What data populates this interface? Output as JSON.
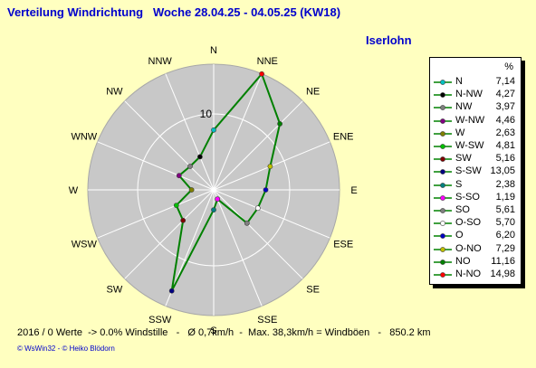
{
  "header": {
    "title": "Verteilung Windrichtung   Woche 28.04.25 - 04.05.25 (KW18)",
    "location": "Iserlohn"
  },
  "footer": {
    "stats": "2016 / 0 Werte  -> 0.0% Windstille   -   Ø 0,7km/h  -  Max. 38,3km/h = Windböen   -   850.2 km",
    "credit": "© WsWin32   -   © Heiko Blödorn"
  },
  "legend": {
    "header": "%",
    "items": [
      {
        "name": "N",
        "value": "7,14",
        "color": "#00c0c0"
      },
      {
        "name": "N-NW",
        "value": "4,27",
        "color": "#000000"
      },
      {
        "name": "NW",
        "value": "3,97",
        "color": "#808080"
      },
      {
        "name": "W-NW",
        "value": "4,46",
        "color": "#800080"
      },
      {
        "name": "W",
        "value": "2,63",
        "color": "#808000"
      },
      {
        "name": "W-SW",
        "value": "4,81",
        "color": "#00c000"
      },
      {
        "name": "SW",
        "value": "5,16",
        "color": "#800000"
      },
      {
        "name": "S-SW",
        "value": "13,05",
        "color": "#000080"
      },
      {
        "name": "S",
        "value": "2,38",
        "color": "#008080"
      },
      {
        "name": "S-SO",
        "value": "1,19",
        "color": "#ff00ff"
      },
      {
        "name": "SO",
        "value": "5,61",
        "color": "#808080"
      },
      {
        "name": "O-SO",
        "value": "5,70",
        "color": "#ffffff"
      },
      {
        "name": "O",
        "value": "6,20",
        "color": "#0000c0"
      },
      {
        "name": "O-NO",
        "value": "7,29",
        "color": "#c0c000"
      },
      {
        "name": "NO",
        "value": "11,16",
        "color": "#008000"
      },
      {
        "name": "N-NO",
        "value": "14,98",
        "color": "#ff0000"
      }
    ]
  },
  "chart_data": {
    "type": "radar",
    "directions": [
      "N",
      "NNE",
      "NE",
      "ENE",
      "E",
      "ESE",
      "SE",
      "SSE",
      "S",
      "SSW",
      "SW",
      "WSW",
      "W",
      "WNW",
      "NW",
      "NNW"
    ],
    "values": [
      7.14,
      14.98,
      11.16,
      7.29,
      6.2,
      5.7,
      5.61,
      1.19,
      2.38,
      13.05,
      5.16,
      4.81,
      2.63,
      4.46,
      3.97,
      4.27
    ],
    "point_colors": [
      "#00c0c0",
      "#ff0000",
      "#008000",
      "#c0c000",
      "#0000c0",
      "#ffffff",
      "#808080",
      "#ff00ff",
      "#008080",
      "#000080",
      "#800000",
      "#00c000",
      "#808000",
      "#800080",
      "#808080",
      "#000000"
    ],
    "radial_tick": "10",
    "rmax": 15,
    "line_color": "#008000",
    "grid": true
  }
}
